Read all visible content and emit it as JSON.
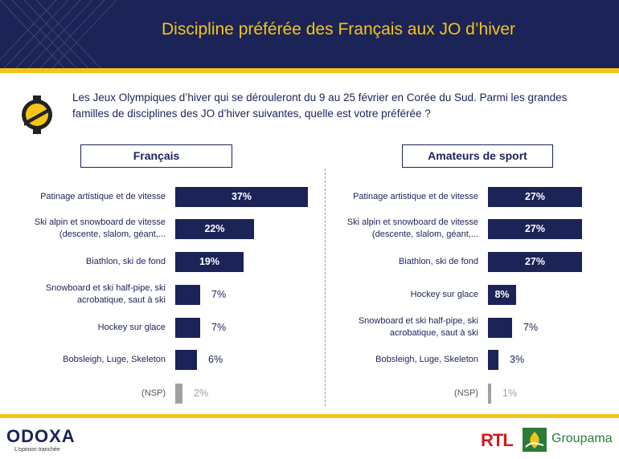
{
  "header": {
    "title": "Discipline préférée des Français aux JO d’hiver"
  },
  "question": "Les Jeux Olympiques d’hiver qui se dérouleront du 9 au 25 février en Corée du Sud. Parmi les grandes familles de disciplines des JO d’hiver suivantes, quelle est votre préférée ?",
  "colors": {
    "navy": "#1b2357",
    "yellow": "#f5c518",
    "gray": "#a0a0a0",
    "rtl_red": "#d51b1b",
    "groupama_green": "#2d7a3a"
  },
  "chart_data": [
    {
      "type": "bar",
      "orientation": "horizontal",
      "title": "Français",
      "unit": "%",
      "max": 37,
      "categories": [
        "Patinage artistique et de vitesse",
        "Ski alpin et snowboard de vitesse (descente, slalom, géant,...",
        "Biathlon, ski de fond",
        "Snowboard et ski half-pipe, ski acrobatique, saut à ski",
        "Hockey sur glace",
        "Bobsleigh, Luge, Skeleton",
        "(NSP)"
      ],
      "values": [
        37,
        22,
        19,
        7,
        7,
        6,
        2
      ],
      "value_labels": [
        "37%",
        "22%",
        "19%",
        "7%",
        "7%",
        "6%",
        "2%"
      ]
    },
    {
      "type": "bar",
      "orientation": "horizontal",
      "title": "Amateurs de sport",
      "unit": "%",
      "max": 37,
      "categories": [
        "Patinage artistique et de vitesse",
        "Ski alpin et snowboard de vitesse (descente, slalom, géant,...",
        "Biathlon, ski de fond",
        "Hockey sur glace",
        "Snowboard et ski half-pipe, ski acrobatique, saut à ski",
        "Bobsleigh, Luge, Skeleton",
        "(NSP)"
      ],
      "values": [
        27,
        27,
        27,
        8,
        7,
        3,
        1
      ],
      "value_labels": [
        "27%",
        "27%",
        "27%",
        "8%",
        "7%",
        "3%",
        "1%"
      ]
    }
  ],
  "footer": {
    "brand": "ODOXA",
    "tagline": "L’opinion tranchée",
    "partner_1": "RTL",
    "partner_2": "Groupama"
  }
}
